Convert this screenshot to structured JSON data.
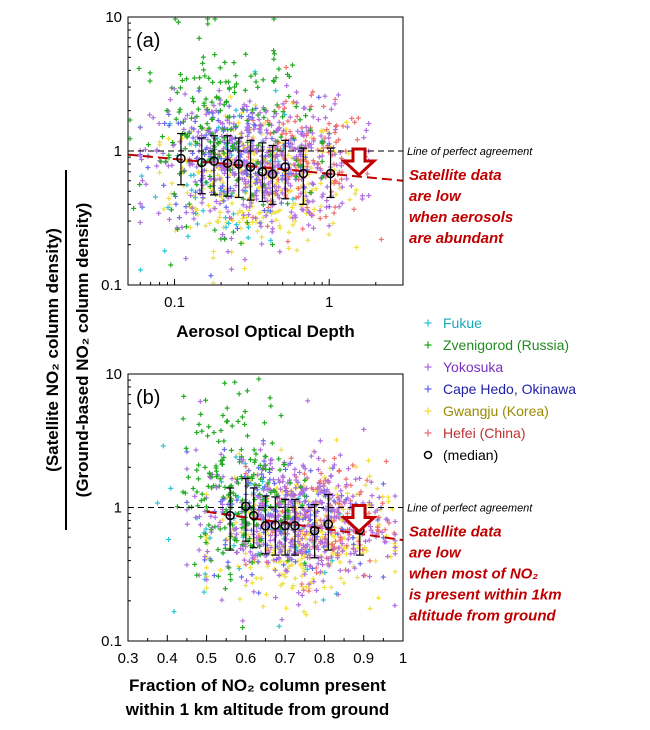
{
  "colors": {
    "Fukue": "#2ec4d6",
    "Zvenigorod (Russia)": "#22aa22",
    "Yokosuka": "#b070e0",
    "Cape Hedo, Okinawa": "#6a6af0",
    "Gwangju (Korea)": "#f0e040",
    "Hefei (China)": "#f07070",
    "median": "#000000",
    "trend": "#c00000",
    "legend_text": {
      "Fukue": "#1aa7b8",
      "Zvenigorod (Russia)": "#228b22",
      "Yokosuka": "#7b2fbf",
      "Cape Hedo, Okinawa": "#1f1fa8",
      "Gwangju (Korea)": "#9a8a00",
      "Hefei (China)": "#c03030",
      "median": "#000000"
    }
  },
  "ylabel_line1": "(Satellite NO₂ column density)",
  "ylabel_line2": "(Ground-based NO₂ column density)",
  "legend": [
    {
      "label": "Fukue",
      "key": "Fukue",
      "marker": "+"
    },
    {
      "label": "Zvenigorod (Russia)",
      "key": "Zvenigorod (Russia)",
      "marker": "+"
    },
    {
      "label": "Yokosuka",
      "key": "Yokosuka",
      "marker": "+"
    },
    {
      "label": "Cape Hedo, Okinawa",
      "key": "Cape Hedo, Okinawa",
      "marker": "+"
    },
    {
      "label": "Gwangju (Korea)",
      "key": "Gwangju (Korea)",
      "marker": "+"
    },
    {
      "label": "Hefei (China)",
      "key": "Hefei (China)",
      "marker": "+"
    },
    {
      "label": "(median)",
      "key": "median",
      "marker": "o"
    }
  ],
  "chart_data": [
    {
      "type": "scatter",
      "panel_label": "(a)",
      "xlabel": "Aerosol Optical Depth",
      "ylabel": "(Satellite NO₂ column density) / (Ground-based NO₂ column density)",
      "xscale": "log",
      "yscale": "log",
      "xlim": [
        0.05,
        3
      ],
      "ylim": [
        0.1,
        10
      ],
      "xticks": [
        0.1,
        1
      ],
      "xtick_labels": [
        "0.1",
        "1"
      ],
      "yticks": [
        0.1,
        1,
        10
      ],
      "ytick_labels": [
        "0.1",
        "1",
        "10"
      ],
      "reference_line": {
        "y": 1,
        "label": "Line of perfect agreement"
      },
      "trend_line": {
        "x": [
          0.05,
          3
        ],
        "y": [
          0.94,
          0.6
        ]
      },
      "annotation_lines": [
        "Satellite data",
        "are low",
        "when aerosols",
        "are abundant"
      ],
      "median": {
        "x": [
          0.11,
          0.15,
          0.18,
          0.22,
          0.26,
          0.31,
          0.37,
          0.43,
          0.52,
          0.68,
          1.02
        ],
        "y": [
          0.88,
          0.82,
          0.84,
          0.81,
          0.8,
          0.76,
          0.7,
          0.67,
          0.76,
          0.68,
          0.68
        ],
        "low": [
          0.56,
          0.48,
          0.47,
          0.46,
          0.45,
          0.43,
          0.42,
          0.4,
          0.44,
          0.4,
          0.45
        ],
        "high": [
          1.35,
          1.25,
          1.3,
          1.3,
          1.25,
          1.2,
          1.15,
          1.1,
          1.2,
          1.05,
          1.05
        ]
      },
      "scatter_summary": {
        "Fukue": {
          "x_range": [
            0.06,
            0.9
          ],
          "y_center": 0.75,
          "y_spread_log10": 0.3,
          "approx_points": 60
        },
        "Zvenigorod (Russia)": {
          "x_range": [
            0.05,
            0.9
          ],
          "y_center": 1.5,
          "y_spread_log10": 0.35,
          "approx_points": 200
        },
        "Yokosuka": {
          "x_range": [
            0.06,
            1.8
          ],
          "y_center": 0.8,
          "y_spread_log10": 0.25,
          "approx_points": 420
        },
        "Cape Hedo, Okinawa": {
          "x_range": [
            0.06,
            1.0
          ],
          "y_center": 0.9,
          "y_spread_log10": 0.22,
          "approx_points": 150
        },
        "Gwangju (Korea)": {
          "x_range": [
            0.08,
            1.5
          ],
          "y_center": 0.6,
          "y_spread_log10": 0.25,
          "approx_points": 280
        },
        "Hefei (China)": {
          "x_range": [
            0.2,
            2.2
          ],
          "y_center": 0.8,
          "y_spread_log10": 0.22,
          "approx_points": 160
        }
      }
    },
    {
      "type": "scatter",
      "panel_label": "(b)",
      "xlabel": "Fraction of NO₂ column present within 1 km altitude from ground",
      "xlabel_lines": [
        "Fraction of NO₂ column present",
        "within 1 km altitude from ground"
      ],
      "ylabel": "(Satellite NO₂ column density) / (Ground-based NO₂ column density)",
      "xscale": "linear",
      "yscale": "log",
      "xlim": [
        0.3,
        1.0
      ],
      "ylim": [
        0.1,
        10
      ],
      "xticks": [
        0.3,
        0.4,
        0.5,
        0.6,
        0.7,
        0.8,
        0.9,
        1
      ],
      "xtick_labels": [
        "0.3",
        "0.4",
        "0.5",
        "0.6",
        "0.7",
        "0.8",
        "0.9",
        "1"
      ],
      "yticks": [
        0.1,
        1,
        10
      ],
      "ytick_labels": [
        "0.1",
        "1",
        "10"
      ],
      "reference_line": {
        "y": 1,
        "label": "Line of perfect agreement"
      },
      "trend_line": {
        "x": [
          0.5,
          1.0
        ],
        "y": [
          0.93,
          0.57
        ]
      },
      "annotation_lines": [
        "Satellite data",
        "are low",
        "when most of NO₂",
        "is present within 1km",
        "altitude from ground"
      ],
      "median": {
        "x": [
          0.56,
          0.6,
          0.62,
          0.65,
          0.675,
          0.7,
          0.725,
          0.775,
          0.81,
          0.89
        ],
        "y": [
          0.87,
          1.02,
          0.87,
          0.73,
          0.74,
          0.73,
          0.73,
          0.67,
          0.75,
          0.68
        ],
        "low": [
          0.48,
          0.56,
          0.5,
          0.45,
          0.44,
          0.44,
          0.44,
          0.42,
          0.48,
          0.44
        ],
        "high": [
          1.4,
          1.65,
          1.4,
          1.22,
          1.2,
          1.15,
          1.15,
          1.05,
          1.25,
          0.98
        ]
      },
      "scatter_summary": {
        "Fukue": {
          "x_range": [
            0.34,
            0.95
          ],
          "y_center": 0.75,
          "y_spread_log10": 0.3,
          "approx_points": 60
        },
        "Zvenigorod (Russia)": {
          "x_range": [
            0.42,
            0.75
          ],
          "y_center": 1.5,
          "y_spread_log10": 0.35,
          "approx_points": 200
        },
        "Yokosuka": {
          "x_range": [
            0.45,
            0.98
          ],
          "y_center": 0.8,
          "y_spread_log10": 0.25,
          "approx_points": 420
        },
        "Cape Hedo, Okinawa": {
          "x_range": [
            0.45,
            0.95
          ],
          "y_center": 0.9,
          "y_spread_log10": 0.22,
          "approx_points": 150
        },
        "Gwangju (Korea)": {
          "x_range": [
            0.5,
            0.98
          ],
          "y_center": 0.6,
          "y_spread_log10": 0.25,
          "approx_points": 280
        },
        "Hefei (China)": {
          "x_range": [
            0.6,
            0.98
          ],
          "y_center": 0.8,
          "y_spread_log10": 0.22,
          "approx_points": 160
        }
      }
    }
  ]
}
